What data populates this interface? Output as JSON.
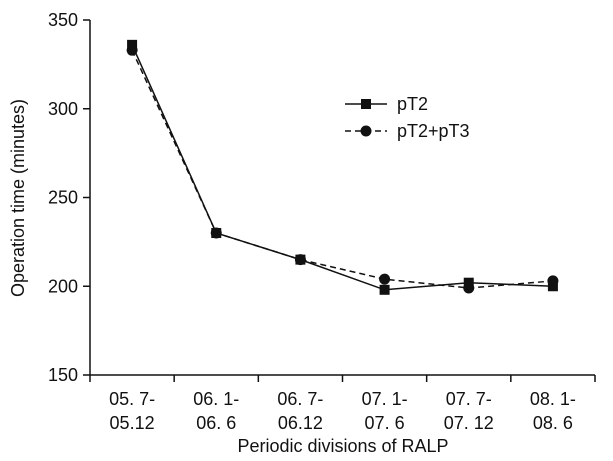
{
  "chart_data": {
    "type": "line",
    "title": "",
    "xlabel": "Periodic divisions of RALP",
    "ylabel": "Operation time (minutes)",
    "categories": [
      [
        "05. 7-",
        "05.12"
      ],
      [
        "06. 1-",
        "06. 6"
      ],
      [
        "06. 7-",
        "06.12"
      ],
      [
        "07. 1-",
        "07. 6"
      ],
      [
        "07. 7-",
        "07. 12"
      ],
      [
        "08. 1-",
        "08. 6"
      ]
    ],
    "ylim": [
      150,
      350
    ],
    "yticks": [
      150,
      200,
      250,
      300,
      350
    ],
    "grid": false,
    "legend_position": "top-right",
    "series": [
      {
        "name": "pT2",
        "marker": "square",
        "line": "solid",
        "color": "#111111",
        "values": [
          336,
          230,
          215,
          198,
          202,
          200
        ]
      },
      {
        "name": "pT2+pT3",
        "marker": "circle",
        "line": "dashed",
        "color": "#111111",
        "values": [
          333,
          230,
          215,
          204,
          199,
          203
        ]
      }
    ]
  }
}
